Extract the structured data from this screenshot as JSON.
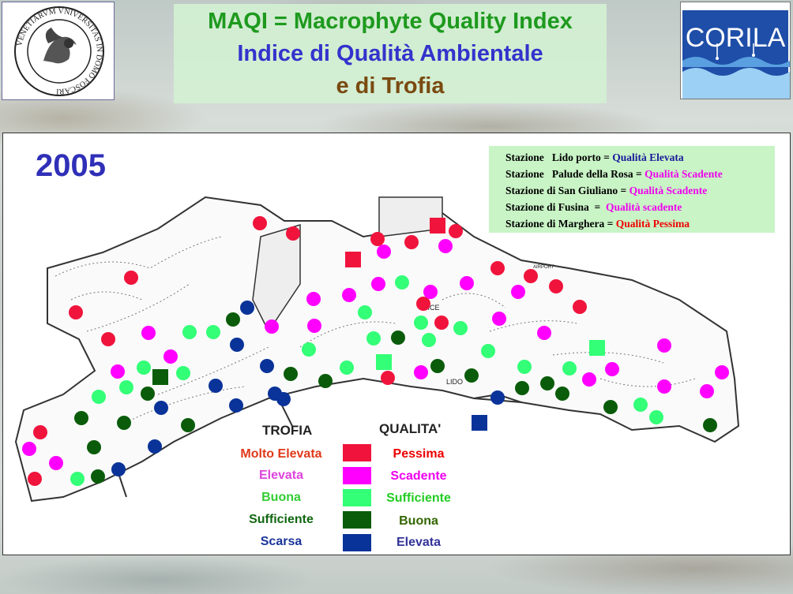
{
  "logos": {
    "left": {
      "ring_text": "VENETIARVM VNIVERSITAS IN DOMO FOSCARI",
      "icon": "winged-lion-seal-icon"
    },
    "right": {
      "text": "CORILA",
      "icon": "water-waves-logo-icon"
    }
  },
  "title": {
    "line1": "MAQI = Macrophyte Quality Index",
    "line2": "Indice di Qualità Ambientale",
    "line3": "e di Trofia",
    "colors": {
      "line1": "#1e9a1e",
      "line2": "#3333cc",
      "line3": "#7a4a10"
    }
  },
  "year": "2005",
  "stations": [
    {
      "label": "Stazione   Lido porto = ",
      "value": "Qualità Elevata",
      "color": "#1a1a9a"
    },
    {
      "label": "Stazione   Palude della Rosa = ",
      "value": "Qualità Scadente",
      "color": "#ee00ee"
    },
    {
      "label": "Stazione di San Giuliano = ",
      "value": "Qualità Scadente",
      "color": "#ee00ee"
    },
    {
      "label": "Stazione di Fusina  =  ",
      "value": "Qualità scadente",
      "color": "#ee00ee"
    },
    {
      "label": "Stazione di Marghera = ",
      "value": "Qualità Pessima",
      "color": "#ee0000"
    }
  ],
  "map_labels": {
    "city": "NICE",
    "lido": "LIDO",
    "airport": "AIRPORT"
  },
  "legend": {
    "trofia_header": "TROFIA",
    "qualita_header": "QUALITA'",
    "classes": [
      {
        "trofia": "Molto Elevata",
        "trofia_color": "#e0391a",
        "qualita": "Pessima",
        "qualita_color": "#ee0000",
        "swatch": "#f0143c"
      },
      {
        "trofia": "Elevata",
        "trofia_color": "#dd44dd",
        "qualita": "Scadente",
        "qualita_color": "#ee00ee",
        "swatch": "#ff00ff"
      },
      {
        "trofia": "Buona",
        "trofia_color": "#33cc33",
        "qualita": "Sufficiente",
        "qualita_color": "#22cc22",
        "swatch": "#33ff77"
      },
      {
        "trofia": "Sufficiente",
        "trofia_color": "#116611",
        "qualita": "Buona",
        "qualita_color": "#336600",
        "swatch": "#0a5c0a"
      },
      {
        "trofia": "Scarsa",
        "trofia_color": "#1a3399",
        "qualita": "Elevata",
        "qualita_color": "#333399",
        "swatch": "#0a3399"
      }
    ]
  }
}
